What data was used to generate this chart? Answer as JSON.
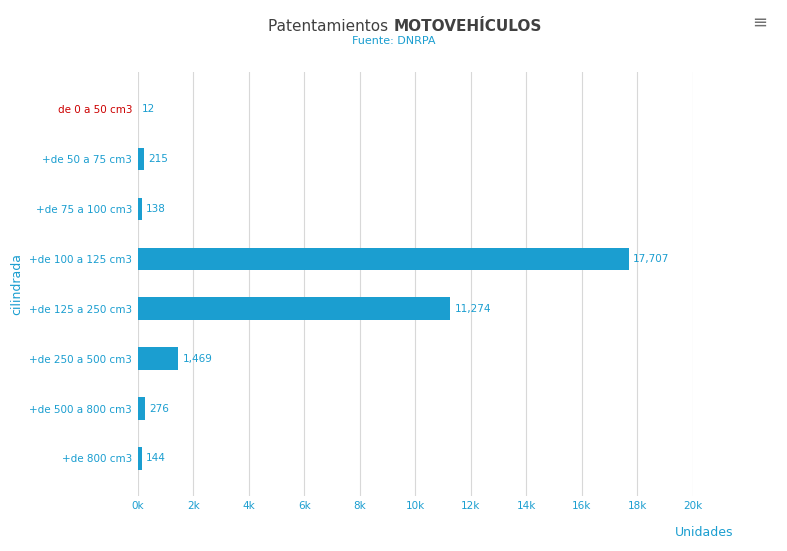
{
  "title_normal": "Patentamientos ",
  "title_bold": "MOTOVEHÍCULOS",
  "subtitle": "Fuente: DNRPA",
  "ylabel": "cilindrada",
  "xlabel": "Unidades",
  "categories": [
    "de 0 a 50 cm3",
    "+de 50 a 75 cm3",
    "+de 75 a 100 cm3",
    "+de 100 a 125 cm3",
    "+de 125 a 250 cm3",
    "+de 250 a 500 cm3",
    "+de 500 a 800 cm3",
    "+de 800 cm3"
  ],
  "values": [
    12,
    215,
    138,
    17707,
    11274,
    1469,
    276,
    144
  ],
  "value_labels": [
    "12",
    "215",
    "138",
    "17,707",
    "11,274",
    "1,469",
    "276",
    "144"
  ],
  "bar_color": "#1b9ed0",
  "label_color": "#1b9ed0",
  "title_color": "#404040",
  "subtitle_color": "#1b9ed0",
  "ylabel_color": "#1b9ed0",
  "xlabel_color": "#1b9ed0",
  "tick_label_color": "#1b9ed0",
  "ytick_label_color_first": "#cc0000",
  "grid_color": "#d8d8d8",
  "background_color": "#ffffff",
  "xlim": [
    0,
    20000
  ],
  "xticks": [
    0,
    2000,
    4000,
    6000,
    8000,
    10000,
    12000,
    14000,
    16000,
    18000,
    20000
  ],
  "xtick_labels": [
    "0k",
    "2k",
    "4k",
    "6k",
    "8k",
    "10k",
    "12k",
    "14k",
    "16k",
    "18k",
    "20k"
  ],
  "bar_height": 0.45,
  "title_fontsize": 11,
  "subtitle_fontsize": 8,
  "tick_fontsize": 7.5,
  "label_fontsize": 7.5
}
